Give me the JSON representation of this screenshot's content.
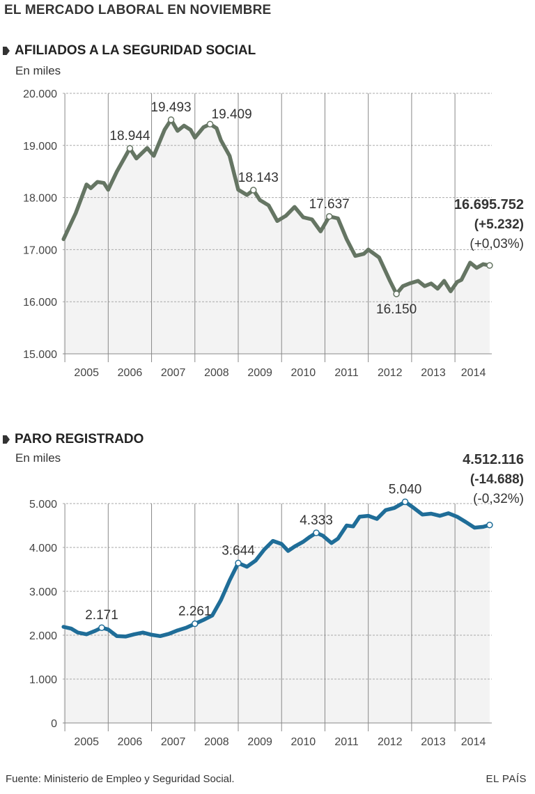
{
  "title": "EL MERCADO LABORAL EN NOVIEMBRE",
  "source": "Fuente: Ministerio de Empleo y Seguridad Social.",
  "brand": "EL PAÍS",
  "chart_data": [
    {
      "type": "line",
      "title": "AFILIADOS A LA SEGURIDAD SOCIAL",
      "unit_label": "En miles",
      "color": "#657563",
      "ylim": [
        15000,
        20000
      ],
      "yticks": [
        15000,
        16000,
        17000,
        18000,
        19000,
        20000
      ],
      "ytick_labels": [
        "15.000",
        "16.000",
        "17.000",
        "18.000",
        "19.000",
        "20.000"
      ],
      "xlim": [
        2004.95,
        2014.85
      ],
      "year_labels": [
        "2005",
        "2006",
        "2007",
        "2008",
        "2009",
        "2010",
        "2011",
        "2012",
        "2013",
        "2014"
      ],
      "series": [
        {
          "name": "Afiliados",
          "x": [
            2004.97,
            2005.25,
            2005.5,
            2005.6,
            2005.75,
            2005.9,
            2006.0,
            2006.2,
            2006.5,
            2006.65,
            2006.9,
            2007.05,
            2007.3,
            2007.45,
            2007.6,
            2007.75,
            2007.9,
            2008.0,
            2008.2,
            2008.35,
            2008.5,
            2008.6,
            2008.8,
            2009.0,
            2009.2,
            2009.35,
            2009.5,
            2009.7,
            2009.9,
            2010.1,
            2010.3,
            2010.5,
            2010.7,
            2010.9,
            2011.1,
            2011.3,
            2011.5,
            2011.7,
            2011.9,
            2012.0,
            2012.25,
            2012.5,
            2012.65,
            2012.8,
            2012.95,
            2013.15,
            2013.3,
            2013.45,
            2013.6,
            2013.75,
            2013.9,
            2014.05,
            2014.15,
            2014.35,
            2014.5,
            2014.65,
            2014.8
          ],
          "values": [
            17200,
            17700,
            18250,
            18180,
            18300,
            18280,
            18150,
            18500,
            18944,
            18750,
            18950,
            18800,
            19300,
            19493,
            19280,
            19380,
            19300,
            19150,
            19350,
            19409,
            19330,
            19100,
            18800,
            18150,
            18050,
            18143,
            17950,
            17850,
            17550,
            17650,
            17820,
            17620,
            17580,
            17350,
            17637,
            17600,
            17200,
            16880,
            16920,
            17000,
            16850,
            16400,
            16150,
            16300,
            16350,
            16400,
            16300,
            16350,
            16250,
            16400,
            16200,
            16380,
            16420,
            16750,
            16650,
            16720,
            16696
          ]
        }
      ],
      "annotations": [
        {
          "x": 2006.5,
          "value": 18944,
          "label": "18.944",
          "pos": "above"
        },
        {
          "x": 2007.45,
          "value": 19493,
          "label": "19.493",
          "pos": "above"
        },
        {
          "x": 2008.35,
          "value": 19409,
          "label": "19.409",
          "pos": "right"
        },
        {
          "x": 2009.35,
          "value": 18143,
          "label": "18.143",
          "pos": "above-right"
        },
        {
          "x": 2011.1,
          "value": 17637,
          "label": "17.637",
          "pos": "above"
        },
        {
          "x": 2012.65,
          "value": 16150,
          "label": "16.150",
          "pos": "below"
        }
      ],
      "latest": {
        "x": 2014.8,
        "value": 16696,
        "main": "16.695.752",
        "change": "(+5.232)",
        "pct": "(+0,03%)"
      }
    },
    {
      "type": "line",
      "title": "PARO REGISTRADO",
      "unit_label": "En miles",
      "color": "#1f6d98",
      "ylim": [
        0,
        5000
      ],
      "yticks": [
        0,
        1000,
        2000,
        3000,
        4000,
        5000
      ],
      "ytick_labels": [
        "0",
        "1.000",
        "2.000",
        "3.000",
        "4.000",
        "5.000"
      ],
      "xlim": [
        2004.95,
        2014.85
      ],
      "year_labels": [
        "2005",
        "2006",
        "2007",
        "2008",
        "2009",
        "2010",
        "2011",
        "2012",
        "2013",
        "2014"
      ],
      "series": [
        {
          "name": "Paro",
          "x": [
            2004.97,
            2005.15,
            2005.3,
            2005.5,
            2005.7,
            2005.85,
            2006.0,
            2006.2,
            2006.4,
            2006.6,
            2006.8,
            2007.0,
            2007.2,
            2007.4,
            2007.6,
            2007.8,
            2008.0,
            2008.2,
            2008.4,
            2008.6,
            2008.8,
            2009.0,
            2009.2,
            2009.4,
            2009.6,
            2009.8,
            2010.0,
            2010.15,
            2010.3,
            2010.5,
            2010.65,
            2010.8,
            2010.95,
            2011.15,
            2011.3,
            2011.5,
            2011.65,
            2011.8,
            2012.0,
            2012.2,
            2012.4,
            2012.6,
            2012.85,
            2013.05,
            2013.25,
            2013.45,
            2013.65,
            2013.85,
            2014.05,
            2014.25,
            2014.45,
            2014.65,
            2014.8
          ],
          "values": [
            2190,
            2150,
            2060,
            2020,
            2100,
            2171,
            2130,
            1980,
            1970,
            2020,
            2060,
            2010,
            1980,
            2030,
            2110,
            2170,
            2261,
            2350,
            2450,
            2800,
            3250,
            3644,
            3560,
            3700,
            3950,
            4150,
            4080,
            3920,
            4020,
            4130,
            4240,
            4333,
            4270,
            4100,
            4200,
            4500,
            4480,
            4700,
            4720,
            4650,
            4850,
            4900,
            5040,
            4900,
            4750,
            4770,
            4720,
            4780,
            4700,
            4580,
            4450,
            4470,
            4512
          ]
        }
      ],
      "annotations": [
        {
          "x": 2005.85,
          "value": 2171,
          "label": "2.171",
          "pos": "above"
        },
        {
          "x": 2008.0,
          "value": 2261,
          "label": "2.261",
          "pos": "above"
        },
        {
          "x": 2009.0,
          "value": 3644,
          "label": "3.644",
          "pos": "above"
        },
        {
          "x": 2010.8,
          "value": 4333,
          "label": "4.333",
          "pos": "above"
        },
        {
          "x": 2012.85,
          "value": 5040,
          "label": "5.040",
          "pos": "above"
        }
      ],
      "latest": {
        "x": 2014.8,
        "value": 4512,
        "main": "4.512.116",
        "change": "(-14.688)",
        "pct": "(-0,32%)"
      }
    }
  ]
}
